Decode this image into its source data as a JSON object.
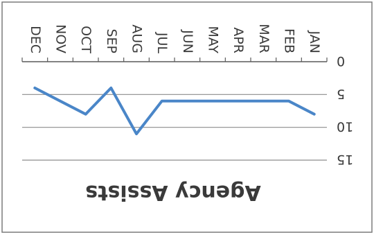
{
  "chart_data": {
    "type": "line",
    "title": "Agency Assists",
    "xlabel": "",
    "ylabel": "",
    "categories": [
      "JAN",
      "FEB",
      "MAR",
      "APR",
      "MAY",
      "JUN",
      "JUL",
      "AUG",
      "SEP",
      "OCT",
      "NOV",
      "DEC"
    ],
    "series": [
      {
        "values": [
          8,
          6,
          6,
          6,
          6,
          6,
          6,
          11,
          4,
          8,
          6,
          4
        ]
      }
    ],
    "ylim": [
      0,
      15
    ],
    "yticks": [
      0,
      5,
      10,
      15
    ],
    "grid": true,
    "legend": "none",
    "orientation": "rotated 180 degrees",
    "colors": {
      "line": "#4a86c8",
      "grid": "#8c8c8c",
      "axis": "#5a5a5a",
      "frame": "#7a7a7a"
    }
  }
}
